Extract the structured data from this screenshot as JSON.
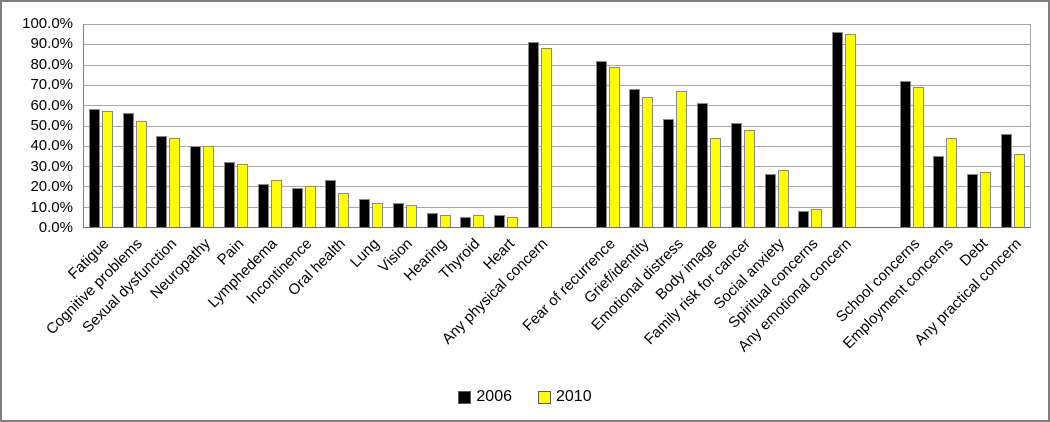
{
  "chart_data": {
    "type": "bar",
    "title": "",
    "xlabel": "",
    "ylabel": "",
    "ylim": [
      0,
      100
    ],
    "grid": true,
    "legend_position": "bottom-center",
    "y_tick_labels": [
      "100.0%",
      "90.0%",
      "80.0%",
      "70.0%",
      "60.0%",
      "50.0%",
      "40.0%",
      "30.0%",
      "20.0%",
      "10.0%",
      "0.0%"
    ],
    "categories": [
      "Fatigue",
      "Cognitive problems",
      "Sexual dysfunction",
      "Neuropathy",
      "Pain",
      "Lymphedema",
      "Incontinence",
      "Oral health",
      "Lung",
      "Vision",
      "Hearing",
      "Thyroid",
      "Heart",
      "Any physical concern",
      "Fear of recurrence",
      "Grief/identity",
      "Emotional distress",
      "Body image",
      "Family risk for cancer",
      "Social anxiety",
      "Spiritual concerns",
      "Any emotional concern",
      "School concerns",
      "Employment concerns",
      "Debt",
      "Any practical concern"
    ],
    "series": [
      {
        "name": "2006",
        "color": "#000000",
        "values": [
          58,
          56,
          45,
          40,
          32,
          21,
          19,
          23,
          14,
          12,
          7,
          5,
          6,
          91,
          82,
          68,
          53,
          61,
          51,
          26,
          8,
          96,
          72,
          35,
          26,
          46
        ]
      },
      {
        "name": "2010",
        "color": "#FFFF00",
        "values": [
          57,
          52,
          44,
          40,
          31,
          23,
          20,
          17,
          12,
          11,
          6,
          6,
          5,
          88,
          79,
          64,
          67,
          44,
          48,
          28,
          9,
          95,
          69,
          44,
          27,
          36
        ]
      }
    ],
    "group_gaps_after": [
      "Any physical concern",
      "Any emotional concern"
    ]
  },
  "legend": {
    "items": [
      {
        "label": "2006",
        "color": "#000000"
      },
      {
        "label": "2010",
        "color": "#FFFF00"
      }
    ]
  },
  "colors": {
    "background": "#ffffff",
    "frame_border": "#7f7f7f",
    "gridline": "#a6a6a6",
    "axis": "#6e6e6e",
    "bar_border": "#898989"
  }
}
